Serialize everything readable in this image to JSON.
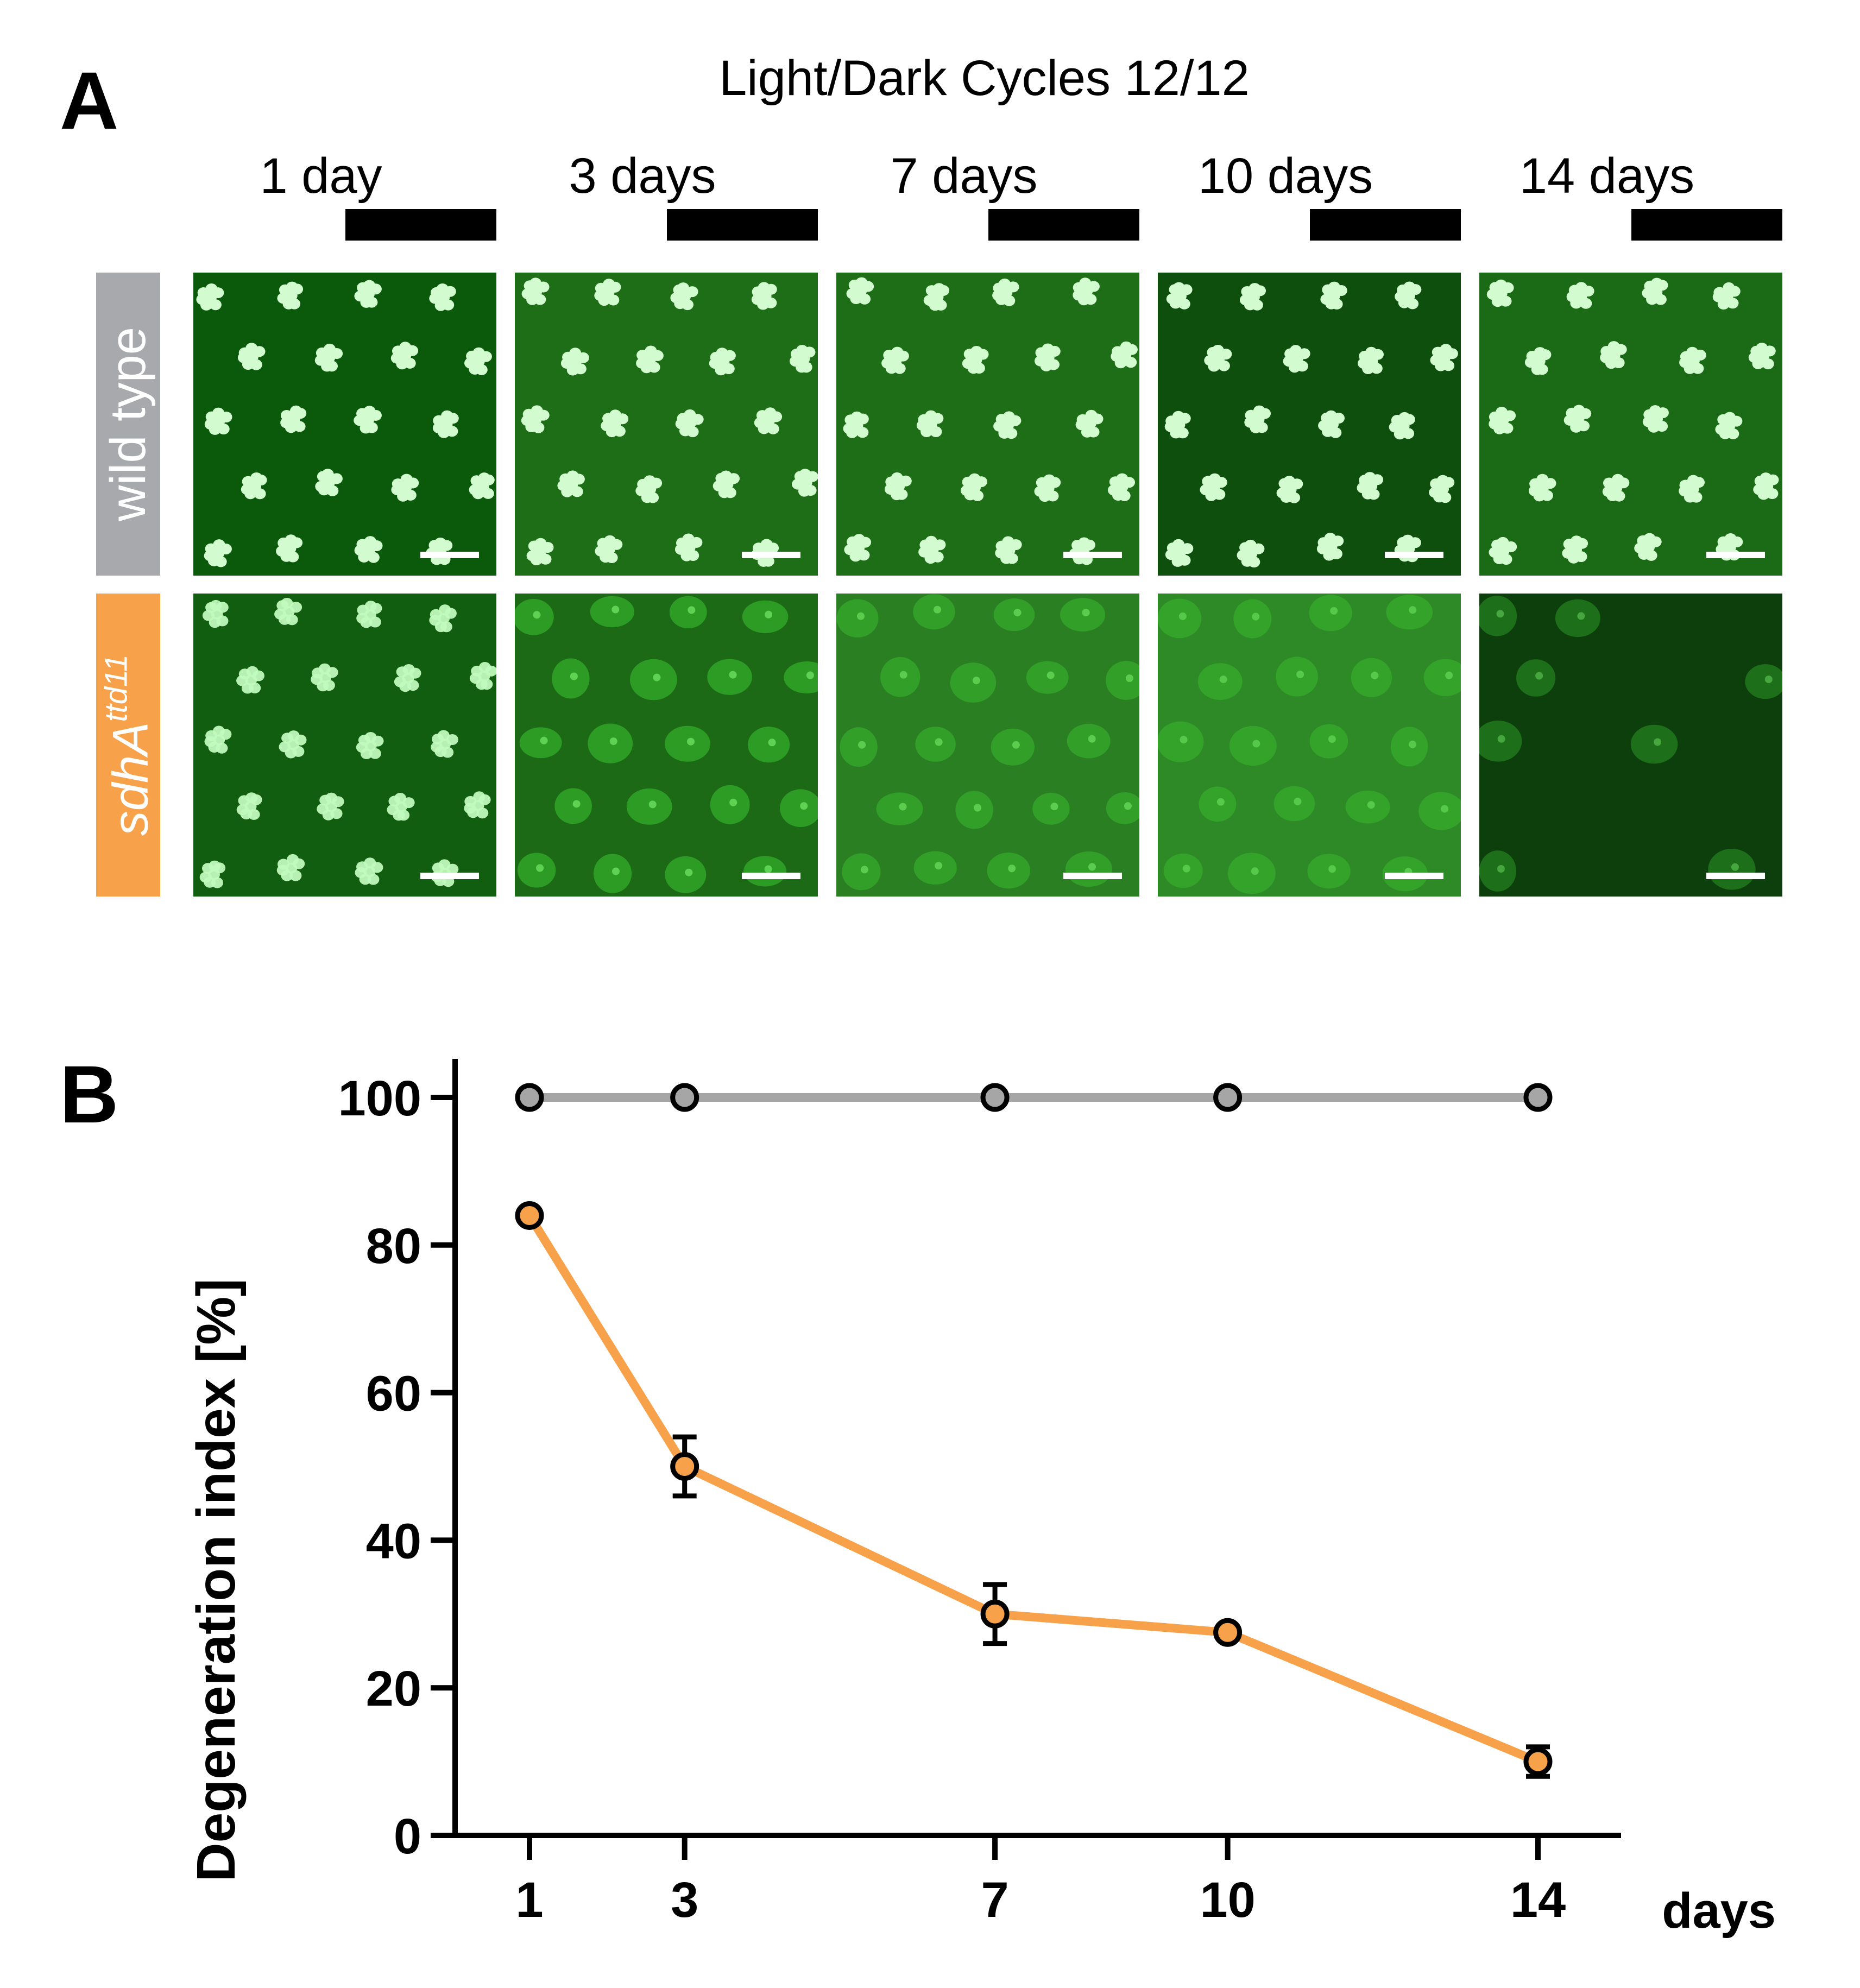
{
  "panel_a": {
    "letter": "A",
    "title": "Light/Dark Cycles 12/12",
    "timepoints": [
      "1 day",
      "3 days",
      "7 days",
      "10 days",
      "14 days"
    ],
    "row_labels": {
      "wild_type": "wild type",
      "mutant_gene": "sdhA",
      "mutant_allele": "ttd11"
    },
    "colors": {
      "wild_type": "#A8A9AD",
      "mutant": "#F7A24A",
      "fluorescence": "#22D11A"
    }
  },
  "panel_b": {
    "letter": "B"
  },
  "chart_data": {
    "type": "line",
    "x": [
      1,
      3,
      7,
      10,
      14
    ],
    "xlabel": "days",
    "ylabel": "Degeneration index [%]",
    "ylim": [
      0,
      100
    ],
    "yticks": [
      "0",
      "20",
      "40",
      "60",
      "80",
      "100"
    ],
    "xticks": [
      "1",
      "3",
      "7",
      "10",
      "14"
    ],
    "series": [
      {
        "name": "wild type",
        "color": "#A6A6A6",
        "values": [
          100,
          100,
          100,
          100,
          100
        ],
        "errors": [
          0,
          0,
          0,
          0,
          0
        ]
      },
      {
        "name": "sdhA ttd11",
        "color": "#F7A24A",
        "values": [
          84,
          50,
          30,
          27.5,
          10
        ],
        "errors": [
          0,
          4,
          4,
          0,
          2
        ]
      }
    ]
  }
}
